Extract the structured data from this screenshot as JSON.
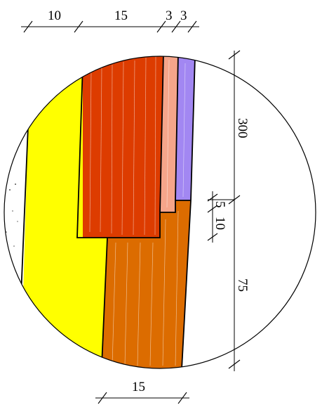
{
  "drawing": {
    "top_dimensions": [
      "10",
      "15",
      "3",
      "3"
    ],
    "right_dimensions": [
      "300",
      "5",
      "10",
      "75"
    ],
    "bottom_dimensions": [
      "15"
    ],
    "colors": {
      "yellow_layer": "#ffff00",
      "red_layer": "#dd3c00",
      "salmon_layer": "#f5a58a",
      "violet_layer": "#a287f2",
      "orange_layer": "#dc6c00",
      "outline": "#000000",
      "background": "#ffffff"
    }
  }
}
